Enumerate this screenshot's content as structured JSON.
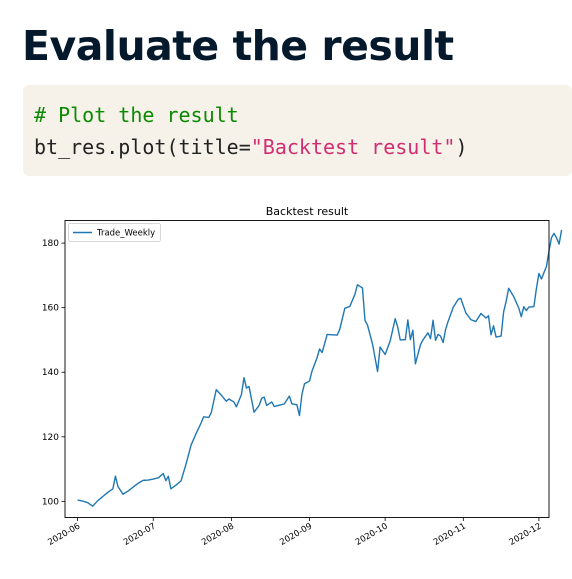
{
  "slide": {
    "title": "Evaluate the result"
  },
  "code": {
    "comment": "# Plot the result",
    "call_prefix": "bt_res.plot(title=",
    "call_string": "\"Backtest result\"",
    "call_suffix": ")"
  },
  "colors": {
    "title": "#05192d",
    "code_background": "#f6f2ea",
    "comment": "#0a8a00",
    "string": "#d12e72",
    "series_line": "#1f77b4"
  },
  "chart_data": {
    "type": "line",
    "title": "Backtest result",
    "xlabel": "",
    "ylabel": "",
    "legend_position": "top-left",
    "grid": false,
    "x_tick_labels": [
      "2020-06",
      "2020-07",
      "2020-08",
      "2020-09",
      "2020-10",
      "2020-11",
      "2020-12"
    ],
    "y_ticks": [
      100,
      120,
      140,
      160,
      180
    ],
    "xlim": [
      "2020-05-27",
      "2020-12-05"
    ],
    "ylim": [
      95,
      187
    ],
    "series": [
      {
        "name": "Trade_Weekly",
        "points": [
          [
            "2020-06-01",
            100.4
          ],
          [
            "2020-06-03",
            100.1
          ],
          [
            "2020-06-05",
            99.6
          ],
          [
            "2020-06-07",
            98.5
          ],
          [
            "2020-06-09",
            100.2
          ],
          [
            "2020-06-11",
            101.5
          ],
          [
            "2020-06-13",
            102.8
          ],
          [
            "2020-06-15",
            103.9
          ],
          [
            "2020-06-16",
            107.8
          ],
          [
            "2020-06-17",
            104.6
          ],
          [
            "2020-06-19",
            102.2
          ],
          [
            "2020-06-21",
            103.2
          ],
          [
            "2020-06-23",
            104.4
          ],
          [
            "2020-06-25",
            105.6
          ],
          [
            "2020-06-27",
            106.5
          ],
          [
            "2020-06-29",
            106.6
          ],
          [
            "2020-07-01",
            106.9
          ],
          [
            "2020-07-03",
            107.3
          ],
          [
            "2020-07-05",
            108.6
          ],
          [
            "2020-07-06",
            106.4
          ],
          [
            "2020-07-07",
            107.8
          ],
          [
            "2020-07-08",
            103.9
          ],
          [
            "2020-07-10",
            105.0
          ],
          [
            "2020-07-12",
            106.3
          ],
          [
            "2020-07-14",
            111.5
          ],
          [
            "2020-07-16",
            117.4
          ],
          [
            "2020-07-18",
            121.0
          ],
          [
            "2020-07-20",
            124.3
          ],
          [
            "2020-07-21",
            126.2
          ],
          [
            "2020-07-23",
            126.0
          ],
          [
            "2020-07-24",
            127.4
          ],
          [
            "2020-07-26",
            134.6
          ],
          [
            "2020-07-28",
            132.9
          ],
          [
            "2020-07-30",
            131.0
          ],
          [
            "2020-07-31",
            131.7
          ],
          [
            "2020-08-02",
            130.8
          ],
          [
            "2020-08-03",
            129.3
          ],
          [
            "2020-08-05",
            133.1
          ],
          [
            "2020-08-06",
            138.3
          ],
          [
            "2020-08-07",
            135.1
          ],
          [
            "2020-08-08",
            135.6
          ],
          [
            "2020-08-10",
            127.6
          ],
          [
            "2020-08-12",
            129.7
          ],
          [
            "2020-08-13",
            131.9
          ],
          [
            "2020-08-14",
            132.3
          ],
          [
            "2020-08-15",
            129.7
          ],
          [
            "2020-08-17",
            130.8
          ],
          [
            "2020-08-18",
            129.4
          ],
          [
            "2020-08-20",
            129.8
          ],
          [
            "2020-08-22",
            130.2
          ],
          [
            "2020-08-24",
            132.6
          ],
          [
            "2020-08-25",
            130.2
          ],
          [
            "2020-08-27",
            129.9
          ],
          [
            "2020-08-28",
            126.6
          ],
          [
            "2020-08-29",
            133.2
          ],
          [
            "2020-08-30",
            136.4
          ],
          [
            "2020-09-01",
            137.3
          ],
          [
            "2020-09-02",
            140.4
          ],
          [
            "2020-09-04",
            144.5
          ],
          [
            "2020-09-05",
            147.2
          ],
          [
            "2020-09-06",
            146.1
          ],
          [
            "2020-09-08",
            151.7
          ],
          [
            "2020-09-10",
            151.6
          ],
          [
            "2020-09-12",
            151.5
          ],
          [
            "2020-09-13",
            153.3
          ],
          [
            "2020-09-15",
            159.8
          ],
          [
            "2020-09-17",
            160.4
          ],
          [
            "2020-09-19",
            164.1
          ],
          [
            "2020-09-20",
            167.1
          ],
          [
            "2020-09-22",
            166.1
          ],
          [
            "2020-09-23",
            156.1
          ],
          [
            "2020-09-24",
            154.6
          ],
          [
            "2020-09-26",
            148.7
          ],
          [
            "2020-09-28",
            140.2
          ],
          [
            "2020-09-29",
            147.8
          ],
          [
            "2020-10-01",
            145.5
          ],
          [
            "2020-10-03",
            149.7
          ],
          [
            "2020-10-05",
            156.6
          ],
          [
            "2020-10-06",
            153.9
          ],
          [
            "2020-10-07",
            150.0
          ],
          [
            "2020-10-09",
            150.1
          ],
          [
            "2020-10-10",
            156.2
          ],
          [
            "2020-10-11",
            150.1
          ],
          [
            "2020-10-12",
            153.0
          ],
          [
            "2020-10-13",
            142.6
          ],
          [
            "2020-10-15",
            148.5
          ],
          [
            "2020-10-16",
            150.0
          ],
          [
            "2020-10-18",
            152.2
          ],
          [
            "2020-10-19",
            150.4
          ],
          [
            "2020-10-20",
            156.1
          ],
          [
            "2020-10-21",
            149.9
          ],
          [
            "2020-10-22",
            151.7
          ],
          [
            "2020-10-23",
            151.2
          ],
          [
            "2020-10-24",
            149.2
          ],
          [
            "2020-10-25",
            153.3
          ],
          [
            "2020-10-26",
            155.8
          ],
          [
            "2020-10-28",
            160.1
          ],
          [
            "2020-10-30",
            162.6
          ],
          [
            "2020-10-31",
            162.9
          ],
          [
            "2020-11-02",
            158.4
          ],
          [
            "2020-11-04",
            156.3
          ],
          [
            "2020-11-06",
            155.7
          ],
          [
            "2020-11-08",
            158.2
          ],
          [
            "2020-11-10",
            156.8
          ],
          [
            "2020-11-11",
            157.5
          ],
          [
            "2020-11-12",
            151.6
          ],
          [
            "2020-11-13",
            154.4
          ],
          [
            "2020-11-14",
            150.9
          ],
          [
            "2020-11-16",
            151.2
          ],
          [
            "2020-11-17",
            158.7
          ],
          [
            "2020-11-18",
            162.0
          ],
          [
            "2020-11-19",
            166.0
          ],
          [
            "2020-11-21",
            163.4
          ],
          [
            "2020-11-23",
            159.9
          ],
          [
            "2020-11-24",
            157.2
          ],
          [
            "2020-11-25",
            160.3
          ],
          [
            "2020-11-26",
            159.1
          ],
          [
            "2020-11-27",
            160.2
          ],
          [
            "2020-11-29",
            160.3
          ],
          [
            "2020-11-30",
            165.9
          ],
          [
            "2020-12-01",
            170.6
          ],
          [
            "2020-12-02",
            168.9
          ],
          [
            "2020-12-04",
            172.8
          ],
          [
            "2020-12-05",
            177.6
          ],
          [
            "2020-12-06",
            181.7
          ],
          [
            "2020-12-07",
            183.0
          ],
          [
            "2020-12-08",
            181.6
          ],
          [
            "2020-12-09",
            179.7
          ],
          [
            "2020-12-10",
            184.1
          ]
        ]
      }
    ]
  }
}
